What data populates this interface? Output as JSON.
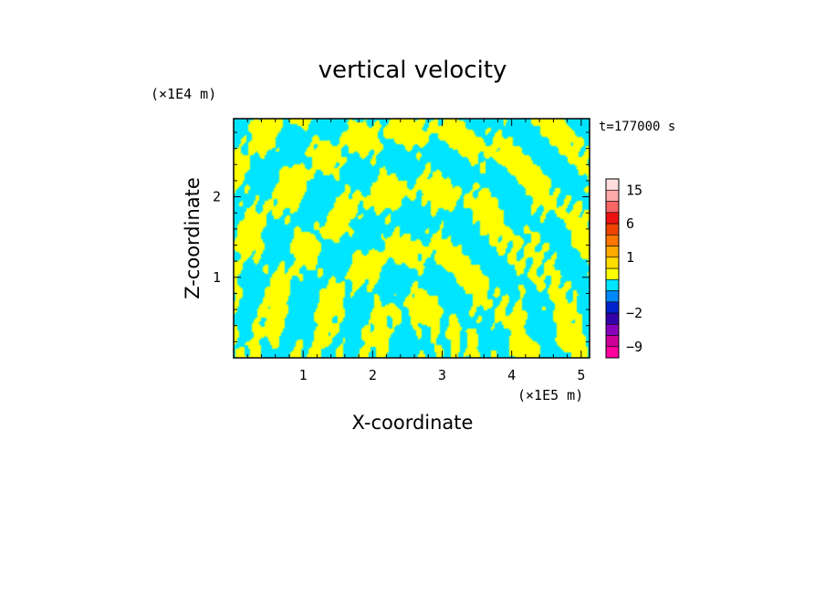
{
  "chart_data": {
    "type": "heatmap",
    "title": "vertical velocity",
    "xlabel": "X-coordinate",
    "ylabel": "Z-coordinate",
    "x_unit": "(×1E5 m)",
    "y_unit": "(×1E4 m)",
    "time_label": "t=177000 s",
    "xlim": [
      0,
      5.12
    ],
    "ylim": [
      0,
      2.97
    ],
    "x_ticks": [
      "1",
      "2",
      "3",
      "4",
      "5"
    ],
    "x_tick_values": [
      1,
      2,
      3,
      4,
      5
    ],
    "y_ticks": [
      "1",
      "2"
    ],
    "y_tick_values": [
      1,
      2
    ],
    "field_colors": {
      "positive": "#ffff00",
      "negative": "#00e5ff"
    },
    "colorbar": {
      "labels": [
        "15",
        "6",
        "1",
        "−2",
        "−9"
      ],
      "label_levels": [
        15,
        6,
        1,
        -2,
        -9
      ],
      "levels": [
        -12,
        -9,
        -6,
        -4,
        -2,
        -1,
        -0.5,
        0,
        0.5,
        1,
        2,
        4,
        6,
        9,
        12,
        15,
        18
      ],
      "colors": [
        "#ff00a0",
        "#cc0099",
        "#8800bb",
        "#3300aa",
        "#0022cc",
        "#0088ff",
        "#00e5ff",
        "#ffff00",
        "#ffdd00",
        "#ffaa00",
        "#ff7700",
        "#ee4400",
        "#ee1111",
        "#ff6666",
        "#ffaaaa",
        "#ffdddd"
      ]
    }
  }
}
